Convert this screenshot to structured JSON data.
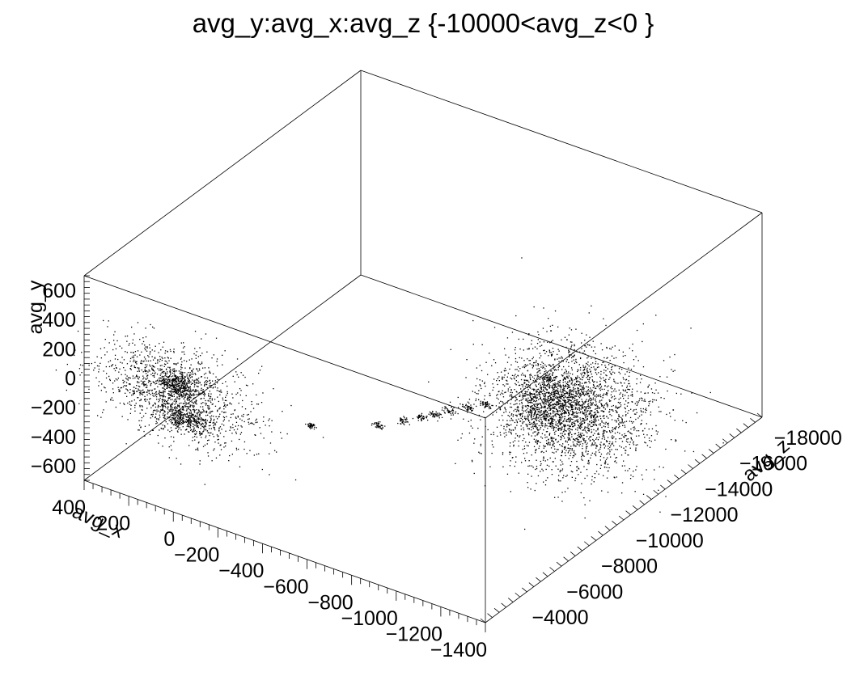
{
  "chart_data": {
    "type": "scatter",
    "title": "avg_y:avg_x:avg_z {-10000<avg_z<0 }",
    "x_axis": {
      "label": "avg_x",
      "range": [
        -1400,
        400
      ],
      "ticks": [
        {
          "value": 400,
          "label": "400"
        },
        {
          "value": 200,
          "label": "200"
        },
        {
          "value": 0,
          "label": "0"
        },
        {
          "value": -200,
          "label": "−200"
        },
        {
          "value": -400,
          "label": "−400"
        },
        {
          "value": -600,
          "label": "−600"
        },
        {
          "value": -800,
          "label": "−800"
        },
        {
          "value": -1000,
          "label": "−1000"
        },
        {
          "value": -1200,
          "label": "−1200"
        },
        {
          "value": -1400,
          "label": "−1400"
        }
      ]
    },
    "y_axis": {
      "label": "avg_y",
      "range": [
        -700,
        700
      ],
      "ticks": [
        {
          "value": 600,
          "label": "600"
        },
        {
          "value": 400,
          "label": "400"
        },
        {
          "value": 200,
          "label": "200"
        },
        {
          "value": 0,
          "label": "0"
        },
        {
          "value": -200,
          "label": "−200"
        },
        {
          "value": -400,
          "label": "−400"
        },
        {
          "value": -600,
          "label": "−600"
        }
      ]
    },
    "z_axis": {
      "label": "avg_z",
      "range": [
        -19000,
        -3000
      ],
      "ticks": [
        {
          "value": -4000,
          "label": "−4000"
        },
        {
          "value": -6000,
          "label": "−6000"
        },
        {
          "value": -8000,
          "label": "−8000"
        },
        {
          "value": -10000,
          "label": "−10000"
        },
        {
          "value": -12000,
          "label": "−12000"
        },
        {
          "value": -14000,
          "label": "−14000"
        },
        {
          "value": -16000,
          "label": "−16000"
        },
        {
          "value": -18000,
          "label": "−18000"
        }
      ]
    },
    "grid": false,
    "legend": "none",
    "marker_color": "#000000",
    "clusters": [
      {
        "x": 0,
        "y": 100,
        "z": -3200,
        "sx": 170,
        "sy": 150,
        "sz": 400,
        "n": 1400
      },
      {
        "x": 0,
        "y": 150,
        "z": -3200,
        "sx": 40,
        "sy": 40,
        "sz": 150,
        "n": 350
      },
      {
        "x": -30,
        "y": -60,
        "z": -3200,
        "sx": 60,
        "sy": 35,
        "sz": 150,
        "n": 350
      },
      {
        "x": -1200,
        "y": 0,
        "z": -10500,
        "sx": 160,
        "sy": 180,
        "sz": 1200,
        "n": 2600
      },
      {
        "x": -1150,
        "y": 60,
        "z": -10000,
        "sx": 70,
        "sy": 60,
        "sz": 600,
        "n": 600
      },
      {
        "x": -500,
        "y": 30,
        "z": -4500,
        "sx": 10,
        "sy": 10,
        "sz": 40,
        "n": 40
      },
      {
        "x": -700,
        "y": 30,
        "z": -5800,
        "sx": 10,
        "sy": 10,
        "sz": 60,
        "n": 40
      },
      {
        "x": -760,
        "y": 30,
        "z": -6500,
        "sx": 12,
        "sy": 12,
        "sz": 60,
        "n": 40
      },
      {
        "x": -800,
        "y": 30,
        "z": -7000,
        "sx": 12,
        "sy": 12,
        "sz": 60,
        "n": 40
      },
      {
        "x": -830,
        "y": 30,
        "z": -7400,
        "sx": 12,
        "sy": 12,
        "sz": 60,
        "n": 40
      },
      {
        "x": -860,
        "y": 30,
        "z": -7900,
        "sx": 12,
        "sy": 12,
        "sz": 60,
        "n": 40
      },
      {
        "x": -900,
        "y": 30,
        "z": -8400,
        "sx": 12,
        "sy": 12,
        "sz": 60,
        "n": 40
      },
      {
        "x": -940,
        "y": 30,
        "z": -8900,
        "sx": 12,
        "sy": 12,
        "sz": 60,
        "n": 40
      },
      {
        "x": -1100,
        "y": 150,
        "z": -10500,
        "sx": 12,
        "sy": 12,
        "sz": 60,
        "n": 30
      }
    ]
  }
}
